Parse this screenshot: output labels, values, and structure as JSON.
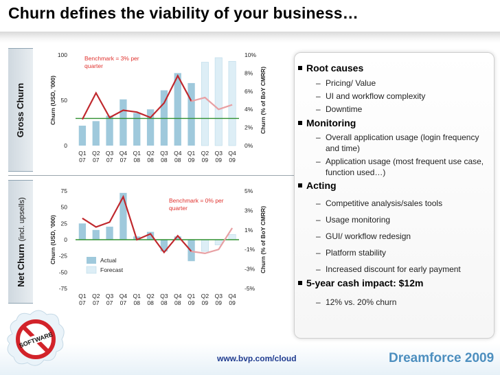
{
  "title": "Churn defines the viability of your business…",
  "gross_label": "Gross Churn",
  "net_label_main": "Net Churn",
  "net_label_sub": "(incl. upsells)",
  "footer_url": "www.bvp.com/cloud",
  "footer_brand": "Dreamforce 2009",
  "bullets": {
    "root_causes": "Root causes",
    "root_items": [
      "Pricing/ Value",
      "UI and workflow complexity",
      "Downtime"
    ],
    "monitoring": "Monitoring",
    "monitoring_items": [
      "Overall application usage (login frequency and time)",
      "Application usage (most frequent use case, function used…)"
    ],
    "acting": "Acting",
    "acting_items": [
      "Competitive analysis/sales tools",
      "Usage monitoring",
      "GUI/ workflow redesign",
      "Platform stability",
      "Increased discount for early payment"
    ],
    "impact": "5-year cash impact: $12m",
    "impact_items": [
      "12% vs. 20% churn"
    ]
  },
  "colors": {
    "bar_actual": "#9fc9dc",
    "bar_forecast": "#ddeef6",
    "line": "#c0282d",
    "benchmark_line": "#2f8f2f",
    "benchmark_text": "#e0322e"
  },
  "chart_data": [
    {
      "type": "bar",
      "name": "gross",
      "ylabel": "Churn (USD, '000)",
      "ylabel2": "Churn (% of BoY CMRR)",
      "ylim": [
        0,
        100
      ],
      "yticks": [
        "0",
        "50",
        "100"
      ],
      "y2lim": [
        0,
        10
      ],
      "y2ticks": [
        "0%",
        "2%",
        "4%",
        "6%",
        "8%",
        "10%"
      ],
      "categories_q": [
        "Q1",
        "Q2",
        "Q3",
        "Q4",
        "Q1",
        "Q2",
        "Q3",
        "Q4",
        "Q1",
        "Q2",
        "Q3",
        "Q4"
      ],
      "categories_y": [
        "07",
        "07",
        "07",
        "07",
        "08",
        "08",
        "08",
        "08",
        "09",
        "09",
        "09",
        "09"
      ],
      "bars": [
        22,
        27,
        33,
        51,
        36,
        40,
        61,
        80,
        69,
        92,
        97,
        93
      ],
      "forecast_from": 9,
      "line_pct": [
        2.9,
        5.8,
        3.1,
        3.9,
        3.7,
        3.1,
        4.7,
        7.7,
        4.9,
        5.3,
        4.0,
        4.5
      ],
      "benchmark": 3,
      "benchmark_label": "Benchmark = 3% per quarter"
    },
    {
      "type": "bar",
      "name": "net",
      "ylabel": "Churn (USD, '000)",
      "ylabel2": "Churn (% of BoY CMRR)",
      "ylim": [
        -75,
        75
      ],
      "yticks": [
        "-75",
        "-50",
        "-25",
        "0",
        "25",
        "50",
        "75"
      ],
      "y2lim": [
        -5,
        5
      ],
      "y2ticks": [
        "-5%",
        "-3%",
        "-1%",
        "1%",
        "3%",
        "5%"
      ],
      "categories_q": [
        "Q1",
        "Q2",
        "Q3",
        "Q4",
        "Q1",
        "Q2",
        "Q3",
        "Q4",
        "Q1",
        "Q2",
        "Q3",
        "Q4"
      ],
      "categories_y": [
        "07",
        "07",
        "07",
        "07",
        "08",
        "08",
        "08",
        "08",
        "09",
        "09",
        "09",
        "09"
      ],
      "bars": [
        25,
        15,
        20,
        72,
        5,
        12,
        -18,
        5,
        -33,
        -18,
        -8,
        8
      ],
      "forecast_from": 9,
      "line_pct": [
        2.2,
        1.3,
        1.8,
        4.4,
        0.0,
        0.6,
        -1.3,
        0.4,
        -1.2,
        -1.4,
        -1.0,
        1.2
      ],
      "benchmark": 0,
      "benchmark_label": "Benchmark = 0% per quarter",
      "legend": [
        "Actual",
        "Forecast"
      ]
    }
  ]
}
